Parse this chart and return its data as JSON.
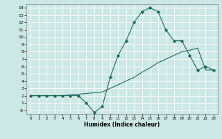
{
  "xlabel": "Humidex (Indice chaleur)",
  "background_color": "#cce8e4",
  "grid_color": "#ffffff",
  "line_color": "#1a6b60",
  "xlim": [
    -0.5,
    23.5
  ],
  "ylim": [
    -0.5,
    14.5
  ],
  "xticks": [
    0,
    1,
    2,
    3,
    4,
    5,
    6,
    7,
    8,
    9,
    10,
    11,
    12,
    13,
    14,
    15,
    16,
    17,
    18,
    19,
    20,
    21,
    22,
    23
  ],
  "yticks": [
    0,
    1,
    2,
    3,
    4,
    5,
    6,
    7,
    8,
    9,
    10,
    11,
    12,
    13,
    14
  ],
  "ytick_labels": [
    "-0",
    "1",
    "2",
    "3",
    "4",
    "5",
    "6",
    "7",
    "8",
    "9",
    "10",
    "11",
    "12",
    "13",
    "14"
  ],
  "curve1_x": [
    0,
    1,
    2,
    3,
    4,
    5,
    6,
    7,
    8,
    9,
    10,
    11,
    12,
    13,
    14,
    15,
    16,
    17,
    18,
    19,
    20,
    21,
    22,
    23
  ],
  "curve1_y": [
    2,
    2,
    2,
    2,
    2,
    2,
    2,
    1,
    -0.3,
    0.5,
    4.5,
    7.5,
    9.5,
    12,
    13.5,
    14,
    13.5,
    11,
    9.5,
    9.5,
    7.5,
    5.5,
    6,
    5.5
  ],
  "curve2_x": [
    0,
    1,
    2,
    3,
    4,
    5,
    6,
    7,
    8,
    9,
    10,
    11,
    12,
    13,
    14,
    15,
    16,
    17,
    18,
    19,
    20,
    21,
    22,
    23
  ],
  "curve2_y": [
    2,
    2,
    2,
    2,
    2,
    2.1,
    2.2,
    2.3,
    2.4,
    2.5,
    3.0,
    3.5,
    4.0,
    4.5,
    5.2,
    5.8,
    6.5,
    7.0,
    7.5,
    8.0,
    8.2,
    8.5,
    5.5,
    5.5
  ],
  "figsize": [
    3.2,
    2.0
  ],
  "dpi": 100
}
